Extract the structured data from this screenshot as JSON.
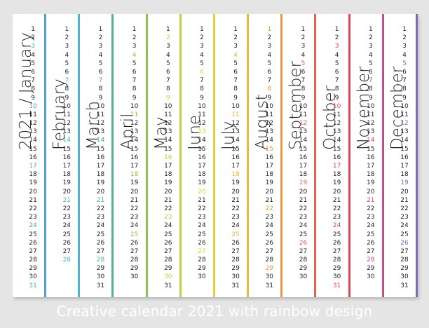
{
  "caption": "Creative calendar 2021 with rainbow design",
  "months": [
    {
      "label": "2021 / January",
      "days": 31,
      "color": "#4aa3d6",
      "highlight": [
        3,
        10,
        17,
        24,
        31
      ]
    },
    {
      "label": "February",
      "days": 28,
      "color": "#4fb3c9",
      "highlight": [
        7,
        14,
        21,
        28
      ]
    },
    {
      "label": "March",
      "days": 31,
      "color": "#4cb39a",
      "highlight": [
        7,
        14,
        21,
        28
      ]
    },
    {
      "label": "April",
      "days": 30,
      "color": "#8fc14a",
      "highlight": [
        4,
        11,
        18,
        25
      ]
    },
    {
      "label": "May",
      "days": 31,
      "color": "#c3cf3e",
      "highlight": [
        2,
        9,
        16,
        23,
        30
      ]
    },
    {
      "label": "June",
      "days": 30,
      "color": "#e6cf38",
      "highlight": [
        6,
        13,
        20,
        27
      ]
    },
    {
      "label": "July",
      "days": 31,
      "color": "#efb63a",
      "highlight": [
        4,
        11,
        18,
        25
      ]
    },
    {
      "label": "August",
      "days": 31,
      "color": "#ed9740",
      "highlight": [
        1,
        8,
        15,
        22,
        29
      ]
    },
    {
      "label": "September",
      "days": 30,
      "color": "#e4604c",
      "highlight": [
        5,
        12,
        19,
        26
      ]
    },
    {
      "label": "October",
      "days": 31,
      "color": "#dc4656",
      "highlight": [
        3,
        10,
        17,
        24,
        31
      ]
    },
    {
      "label": "November",
      "days": 30,
      "color": "#c74a8a",
      "highlight": [
        7,
        14,
        21,
        28
      ]
    },
    {
      "label": "December",
      "days": 31,
      "color": "#8667b5",
      "highlight": [
        5,
        12,
        19,
        26
      ]
    }
  ]
}
